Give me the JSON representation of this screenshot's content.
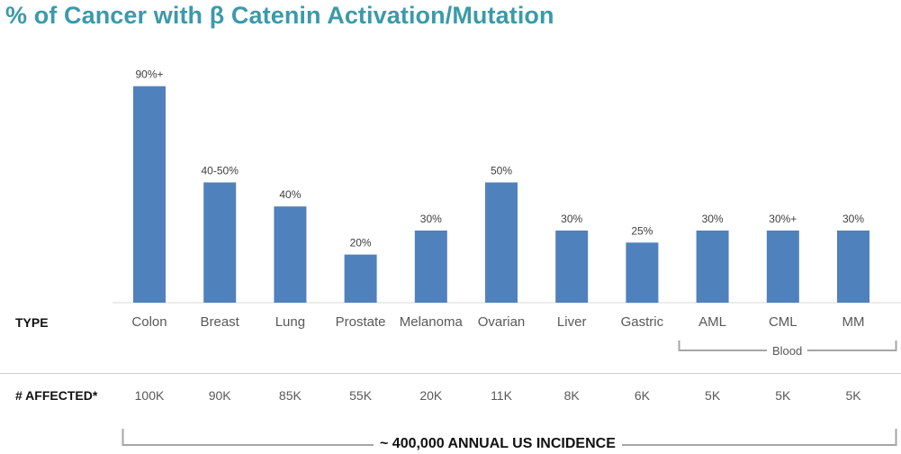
{
  "title": "% of Cancer with β Catenin Activation/Mutation",
  "colors": {
    "bar": "#4f81bd",
    "title": "#3b9aaa",
    "bracket": "#a6a6a6"
  },
  "rows": {
    "type_label": "TYPE",
    "affected_label": "# AFFECTED*"
  },
  "chart_data": {
    "type": "bar",
    "title": "% of Cancer with β Catenin Activation/Mutation",
    "categories": [
      "Colon",
      "Breast",
      "Lung",
      "Prostate",
      "Melanoma",
      "Ovarian",
      "Liver",
      "Gastric",
      "AML",
      "CML",
      "MM"
    ],
    "values": [
      90,
      50,
      40,
      20,
      30,
      50,
      30,
      25,
      30,
      30,
      30
    ],
    "data_labels": [
      "90%+",
      "40-50%",
      "40%",
      "20%",
      "30%",
      "50%",
      "30%",
      "25%",
      "30%",
      "30%+",
      "30%"
    ],
    "affected": [
      "100K",
      "90K",
      "85K",
      "55K",
      "20K",
      "11K",
      "8K",
      "6K",
      "5K",
      "5K",
      "5K"
    ],
    "ylim": [
      0,
      100
    ],
    "grid": false,
    "legend": "none"
  },
  "groups": {
    "blood_label": "Blood"
  },
  "footer": {
    "incidence": "~ 400,000 ANNUAL US INCIDENCE"
  }
}
